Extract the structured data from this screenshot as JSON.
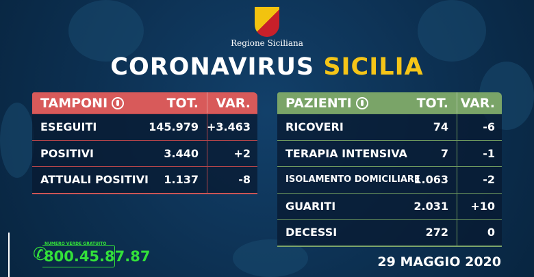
{
  "header": {
    "org": "Regione Siciliana",
    "title_part1": "CORONAVIRUS",
    "title_part2": "SICILIA"
  },
  "colors": {
    "background": "#0c2f50",
    "tamponi_header": "#d85a5a",
    "pazienti_header": "#7aa468",
    "accent": "#f5c518",
    "phone": "#33e03a"
  },
  "tamponi": {
    "title": "TAMPONI",
    "icon": "swab-icon",
    "col_tot": "TOT.",
    "col_var": "VAR.",
    "rows": [
      {
        "label": "ESEGUITI",
        "tot": "145.979",
        "var": "+3.463"
      },
      {
        "label": "POSITIVI",
        "tot": "3.440",
        "var": "+2"
      },
      {
        "label": "ATTUALI POSITIVI",
        "tot": "1.137",
        "var": "-8"
      }
    ]
  },
  "pazienti": {
    "title": "PAZIENTI",
    "icon": "patient-icon",
    "col_tot": "TOT.",
    "col_var": "VAR.",
    "rows": [
      {
        "label": "RICOVERI",
        "tot": "74",
        "var": "-6"
      },
      {
        "label": "TERAPIA INTENSIVA",
        "tot": "7",
        "var": "-1"
      },
      {
        "label": "ISOLAMENTO DOMICILIARE",
        "tot": "1.063",
        "var": "-2"
      },
      {
        "label": "GUARITI",
        "tot": "2.031",
        "var": "+10"
      },
      {
        "label": "DECESSI",
        "tot": "272",
        "var": "0"
      }
    ]
  },
  "hotline": {
    "label": "NUMERO VERDE GRATUITO",
    "number": "800.45.87.87"
  },
  "date": "29 MAGGIO 2020"
}
